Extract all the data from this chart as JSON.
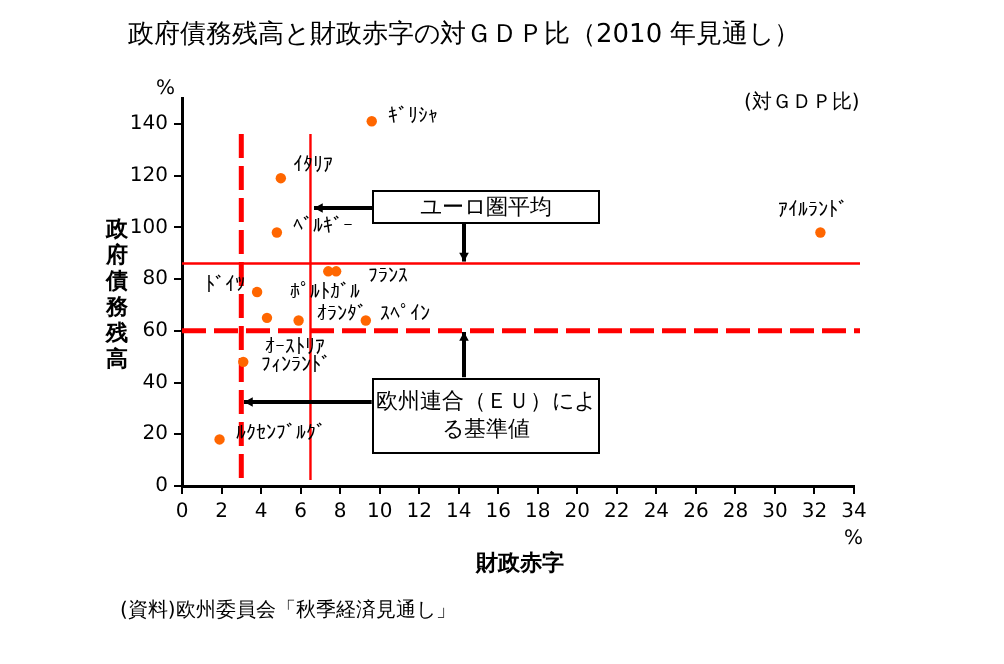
{
  "chart_data": {
    "type": "scatter",
    "title": "政府債務残高と財政赤字の対ＧＤＰ比（2010 年見通し）",
    "xlabel": "財政赤字",
    "ylabel": "政府債務残高",
    "x": [
      9.6,
      5.0,
      4.8,
      3.8,
      7.4,
      7.8,
      4.3,
      5.9,
      9.3,
      3.1,
      1.9,
      32.3
    ],
    "values": [
      141,
      119,
      98,
      75,
      83,
      83,
      65,
      64,
      64,
      48,
      18,
      98
    ],
    "color": "#ff6600",
    "marker": "circle",
    "grid": false,
    "legend": false,
    "xlim": [
      0,
      34
    ],
    "xticks": [
      0,
      2,
      4,
      6,
      8,
      10,
      12,
      14,
      16,
      18,
      20,
      22,
      24,
      26,
      28,
      30,
      32,
      34
    ],
    "ylim": [
      0,
      150
    ],
    "yticks": [
      0,
      20,
      40,
      60,
      80,
      100,
      120,
      140
    ],
    "ref_lines": [
      {
        "axis": "y",
        "value": 86,
        "label": "ユーロ圏平均",
        "color": "#ff0000",
        "line_style": "solid"
      },
      {
        "axis": "x",
        "value": 6.5,
        "label": null,
        "color": "#ff0000",
        "line_style": "solid"
      },
      {
        "axis": "y",
        "value": 60,
        "label": "欧州連合（ＥＵ）による基準値",
        "color": "#ff0000",
        "line_style": "dashed"
      },
      {
        "axis": "x",
        "value": 3,
        "label": null,
        "color": "#ff0000",
        "line_style": "dashed"
      }
    ],
    "annotations": [
      {
        "text": "ｷﾞﾘｼｬ",
        "x": 9.6,
        "y": 141
      },
      {
        "text": "ｲﾀﾘｱ",
        "x": 5.0,
        "y": 119
      },
      {
        "text": "ﾍﾞﾙｷﾞｰ",
        "x": 4.8,
        "y": 98
      },
      {
        "text": "ﾄﾞｲﾂ",
        "x": 3.8,
        "y": 75
      },
      {
        "text": "ﾎﾟﾙﾄｶﾞﾙ",
        "x": 7.4,
        "y": 83
      },
      {
        "text": "ﾌﾗﾝｽ",
        "x": 7.8,
        "y": 83
      },
      {
        "text": "ｵｰｽﾄﾘｱ",
        "x": 4.3,
        "y": 65
      },
      {
        "text": "ｵﾗﾝﾀﾞ",
        "x": 5.9,
        "y": 64
      },
      {
        "text": "ｽﾍﾟｲﾝ",
        "x": 9.3,
        "y": 64
      },
      {
        "text": "ﾌｨﾝﾗﾝﾄﾞ",
        "x": 3.1,
        "y": 48
      },
      {
        "text": "ﾙｸｾﾝﾌﾞﾙｸﾞ",
        "x": 1.9,
        "y": 18
      },
      {
        "text": "ｱｲﾙﾗﾝﾄﾞ",
        "x": 32.3,
        "y": 98
      },
      "%",
      "%",
      "(対ＧＤＰ比)",
      "(資料)欧州委員会「秋季経済見通し」"
    ]
  }
}
